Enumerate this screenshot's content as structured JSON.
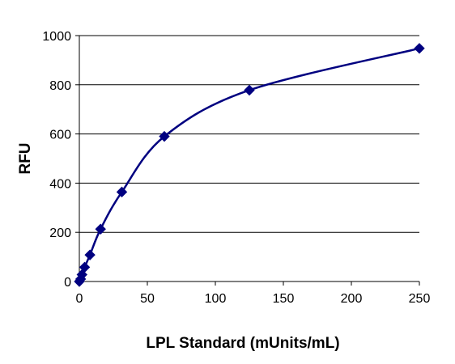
{
  "chart_data": {
    "type": "scatter",
    "xlabel": "LPL Standard (mUnits/mL)",
    "ylabel": "RFU",
    "xlim": [
      0,
      250
    ],
    "ylim": [
      0,
      1000
    ],
    "x_ticks": [
      0,
      50,
      100,
      150,
      200,
      250
    ],
    "y_ticks": [
      0,
      200,
      400,
      600,
      800,
      1000
    ],
    "x_tick_labels": [
      "0",
      "50",
      "100",
      "150",
      "200",
      "250"
    ],
    "y_tick_labels": [
      "0",
      "200",
      "400",
      "600",
      "800",
      "1000"
    ],
    "grid": "horizontal",
    "legend": "none",
    "series": [
      {
        "marker": "diamond",
        "line": "smooth",
        "color": "#000080",
        "x": [
          0,
          0.98,
          1.95,
          3.9,
          7.8,
          15.6,
          31.25,
          62.5,
          125,
          250
        ],
        "y": [
          0,
          10,
          28,
          58,
          108,
          213,
          364,
          590,
          778,
          948
        ]
      }
    ]
  }
}
